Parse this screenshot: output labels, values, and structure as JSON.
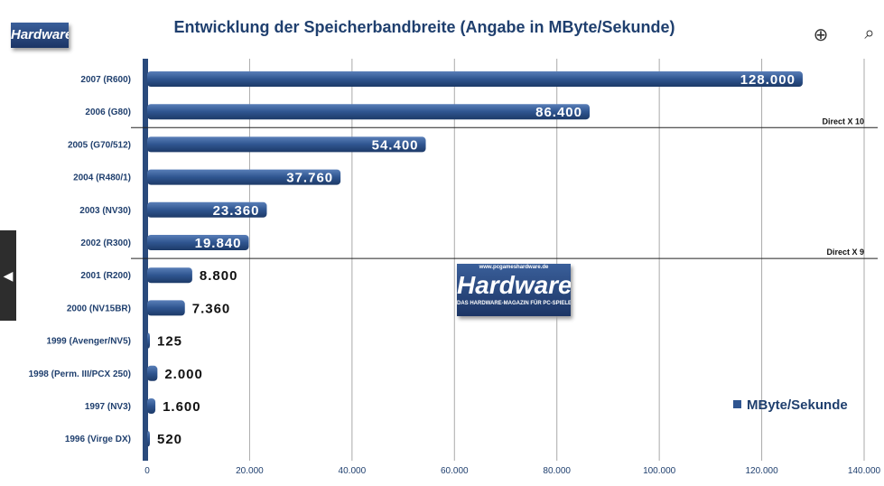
{
  "toolbar": {
    "zoom_in_icon": "zoom-in-icon",
    "search_icon": "search-icon",
    "prev_icon": "chevron-left-icon"
  },
  "logos": {
    "small": "Hardware",
    "center": "Hardware",
    "center_sub": "DAS HARDWARE-MAGAZIN FÜR PC-SPIELER",
    "center_top": "www.pcgameshardware.de"
  },
  "chart_data": {
    "type": "bar",
    "orientation": "horizontal",
    "title": "Entwicklung der Speicherbandbreite (Angabe in MByte/Sekunde)",
    "categories": [
      "2007  (R600)",
      "2006  (G80)",
      "2005  (G70/512)",
      "2004  (R480/1)",
      "2003  (NV30)",
      "2002  (R300)",
      "2001  (R200)",
      "2000  (NV15BR)",
      "1999  (Avenger/NV5)",
      "1998  (Perm. III/PCX 250)",
      "1997  (NV3)",
      "1996  (Virge DX)"
    ],
    "series": [
      {
        "name": "MByte/Sekunde",
        "values": [
          128000,
          86400,
          54400,
          37760,
          23360,
          19840,
          8800,
          7360,
          125,
          2000,
          1600,
          520
        ],
        "labels": [
          "128.000",
          "86.400",
          "54.400",
          "37.760",
          "23.360",
          "19.840",
          "8.800",
          "7.360",
          "125",
          "2.000",
          "1.600",
          "520"
        ]
      }
    ],
    "xlim": [
      0,
      140000
    ],
    "xticks": [
      "0",
      "20.000",
      "40.000",
      "60.000",
      "80.000",
      "100.000",
      "120.000",
      "140.000"
    ],
    "grid": true,
    "legend": "bottom-right",
    "annotations": [
      {
        "text": "Direct X 10",
        "after_category": "2006  (G80)"
      },
      {
        "text": "Direct X 9",
        "after_category": "2002  (R300)"
      }
    ],
    "bar_color": "#2f5590"
  }
}
